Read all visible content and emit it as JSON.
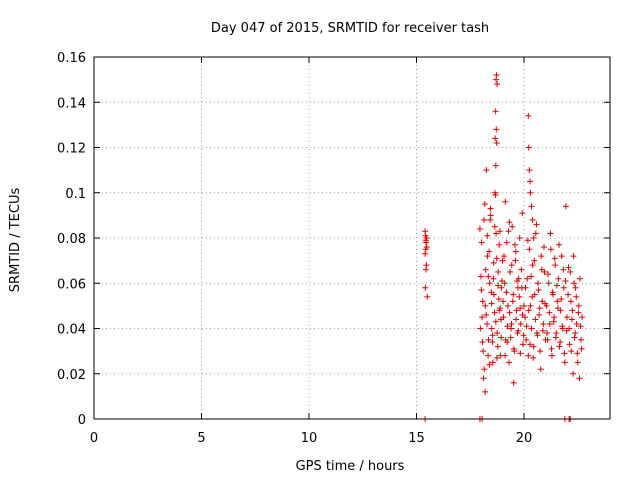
{
  "chart_data": {
    "type": "scatter",
    "title": "Day 047 of 2015, SRMTID for receiver tash",
    "xlabel": "GPS time / hours",
    "ylabel": "SRMTID / TECUs",
    "xlim": [
      0,
      24
    ],
    "ylim": [
      0,
      0.16
    ],
    "xticks": [
      0,
      5,
      10,
      15,
      20
    ],
    "xtick_labels": [
      "0",
      "5",
      "10",
      "15",
      "20"
    ],
    "yticks": [
      0,
      0.02,
      0.04,
      0.06,
      0.08,
      0.1,
      0.12,
      0.14,
      0.16
    ],
    "ytick_labels": [
      "0",
      "0.02",
      "0.04",
      "0.06",
      "0.08",
      "0.1",
      "0.12",
      "0.14",
      "0.16"
    ],
    "grid": true,
    "marker": "+",
    "color": "#e00000",
    "series": [
      {
        "name": "SRMTID",
        "x": [
          15.4,
          15.42,
          15.45,
          15.48,
          15.4,
          15.43,
          15.46,
          15.44,
          15.41,
          15.5,
          15.47,
          15.43,
          17.95,
          18.0,
          18.05,
          18.1,
          18.15,
          18.2,
          18.25,
          18.3,
          18.35,
          18.4,
          18.45,
          18.5,
          18.55,
          18.6,
          18.65,
          18.7,
          18.75,
          18.8,
          18.85,
          18.9,
          18.95,
          19.0,
          17.97,
          18.03,
          18.08,
          18.12,
          18.18,
          18.22,
          18.28,
          18.33,
          18.38,
          18.43,
          18.48,
          18.53,
          18.58,
          18.63,
          18.68,
          18.73,
          18.78,
          18.83,
          18.88,
          18.93,
          18.98,
          18.02,
          18.07,
          18.14,
          18.19,
          18.24,
          18.29,
          18.34,
          18.39,
          18.44,
          18.49,
          18.54,
          18.59,
          18.64,
          18.69,
          18.74,
          18.79,
          18.84,
          18.89,
          18.94,
          18.7,
          18.72,
          18.75,
          18.68,
          18.71,
          18.66,
          18.73,
          18.69,
          19.05,
          19.1,
          19.15,
          19.2,
          19.25,
          19.3,
          19.35,
          19.4,
          19.45,
          19.5,
          19.55,
          19.6,
          19.65,
          19.7,
          19.75,
          19.8,
          19.85,
          19.9,
          19.95,
          20.0,
          19.07,
          19.12,
          19.18,
          19.23,
          19.28,
          19.33,
          19.38,
          19.43,
          19.48,
          19.53,
          19.58,
          19.63,
          19.68,
          19.73,
          19.78,
          19.83,
          19.88,
          19.93,
          19.98,
          19.03,
          19.13,
          19.22,
          19.32,
          19.42,
          19.52,
          19.62,
          19.72,
          19.82,
          19.92,
          20.05,
          20.1,
          20.15,
          20.2,
          20.25,
          20.3,
          20.35,
          20.4,
          20.45,
          20.5,
          20.55,
          20.6,
          20.65,
          20.7,
          20.75,
          20.8,
          20.85,
          20.9,
          20.95,
          21.0,
          20.07,
          20.12,
          20.18,
          20.22,
          20.28,
          20.33,
          20.38,
          20.43,
          20.48,
          20.53,
          20.58,
          20.63,
          20.68,
          20.73,
          20.78,
          20.83,
          20.88,
          20.93,
          20.98,
          20.2,
          20.22,
          20.25,
          20.28,
          20.3,
          20.35,
          20.4,
          20.45,
          21.05,
          21.1,
          21.15,
          21.2,
          21.25,
          21.3,
          21.35,
          21.4,
          21.45,
          21.5,
          21.55,
          21.6,
          21.65,
          21.7,
          21.75,
          21.8,
          21.85,
          21.9,
          21.95,
          22.0,
          21.07,
          21.12,
          21.18,
          21.23,
          21.28,
          21.33,
          21.38,
          21.43,
          21.48,
          21.53,
          21.58,
          21.63,
          21.68,
          21.73,
          21.78,
          21.83,
          21.88,
          21.93,
          21.98,
          22.05,
          22.1,
          22.15,
          22.2,
          22.25,
          22.3,
          22.35,
          22.4,
          22.45,
          22.5,
          22.55,
          22.6,
          22.65,
          22.7,
          22.07,
          22.12,
          22.18,
          22.23,
          22.28,
          22.33,
          22.38,
          22.43,
          22.48,
          22.53,
          22.58,
          22.63,
          22.68,
          15.4,
          17.95,
          18.05,
          21.9,
          22.1,
          22.15
        ],
        "y": [
          0.083,
          0.081,
          0.078,
          0.076,
          0.073,
          0.079,
          0.068,
          0.066,
          0.058,
          0.054,
          0.08,
          0.075,
          0.084,
          0.063,
          0.045,
          0.03,
          0.022,
          0.05,
          0.11,
          0.072,
          0.035,
          0.06,
          0.09,
          0.04,
          0.025,
          0.055,
          0.1,
          0.082,
          0.038,
          0.065,
          0.048,
          0.028,
          0.058,
          0.07,
          0.04,
          0.078,
          0.052,
          0.018,
          0.095,
          0.066,
          0.042,
          0.028,
          0.074,
          0.088,
          0.056,
          0.034,
          0.062,
          0.047,
          0.099,
          0.071,
          0.032,
          0.053,
          0.083,
          0.044,
          0.061,
          0.057,
          0.034,
          0.088,
          0.012,
          0.046,
          0.081,
          0.063,
          0.024,
          0.093,
          0.051,
          0.037,
          0.069,
          0.085,
          0.043,
          0.027,
          0.059,
          0.077,
          0.049,
          0.036,
          0.15,
          0.152,
          0.148,
          0.136,
          0.128,
          0.124,
          0.122,
          0.112,
          0.045,
          0.06,
          0.035,
          0.078,
          0.05,
          0.025,
          0.065,
          0.04,
          0.085,
          0.055,
          0.03,
          0.07,
          0.048,
          0.038,
          0.062,
          0.08,
          0.042,
          0.058,
          0.033,
          0.05,
          0.072,
          0.028,
          0.056,
          0.041,
          0.083,
          0.047,
          0.036,
          0.068,
          0.052,
          0.031,
          0.077,
          0.044,
          0.061,
          0.039,
          0.054,
          0.029,
          0.066,
          0.046,
          0.037,
          0.052,
          0.096,
          0.034,
          0.087,
          0.042,
          0.016,
          0.074,
          0.058,
          0.049,
          0.091,
          0.045,
          0.035,
          0.062,
          0.028,
          0.075,
          0.05,
          0.04,
          0.068,
          0.032,
          0.055,
          0.082,
          0.038,
          0.06,
          0.046,
          0.03,
          0.072,
          0.052,
          0.042,
          0.065,
          0.035,
          0.058,
          0.041,
          0.079,
          0.048,
          0.033,
          0.063,
          0.054,
          0.027,
          0.07,
          0.044,
          0.086,
          0.037,
          0.057,
          0.049,
          0.022,
          0.066,
          0.039,
          0.076,
          0.051,
          0.134,
          0.12,
          0.11,
          0.105,
          0.1,
          0.094,
          0.088,
          0.08,
          0.05,
          0.035,
          0.06,
          0.042,
          0.075,
          0.028,
          0.055,
          0.045,
          0.068,
          0.038,
          0.052,
          0.062,
          0.032,
          0.048,
          0.072,
          0.04,
          0.058,
          0.025,
          0.094,
          0.045,
          0.038,
          0.064,
          0.047,
          0.082,
          0.031,
          0.056,
          0.043,
          0.071,
          0.036,
          0.059,
          0.049,
          0.077,
          0.034,
          0.053,
          0.041,
          0.066,
          0.029,
          0.061,
          0.039,
          0.055,
          0.04,
          0.065,
          0.03,
          0.048,
          0.072,
          0.036,
          0.058,
          0.042,
          0.025,
          0.05,
          0.062,
          0.035,
          0.045,
          0.067,
          0.033,
          0.052,
          0.044,
          0.02,
          0.06,
          0.038,
          0.054,
          0.029,
          0.047,
          0.018,
          0.041,
          0.031,
          0.0,
          0.0,
          0.0,
          0.0,
          0.0,
          0.0
        ]
      }
    ]
  }
}
